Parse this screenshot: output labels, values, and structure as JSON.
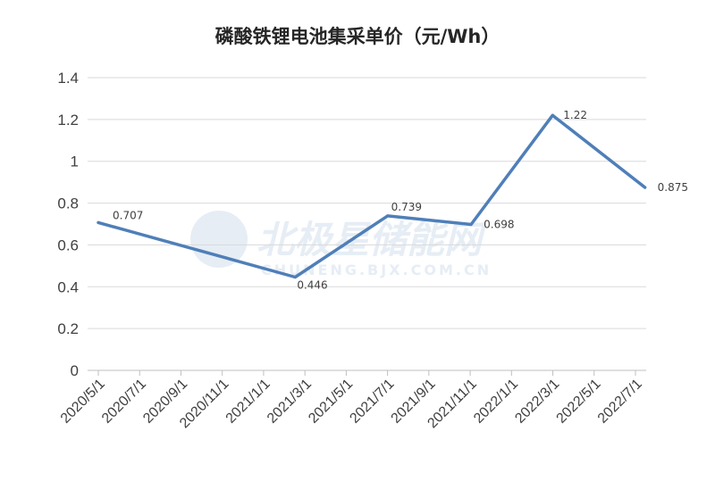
{
  "chart_data": {
    "type": "line",
    "title": "磷酸铁锂电池集采单价（元/Wh）",
    "xlabel": "",
    "ylabel": "",
    "ylim": [
      0,
      1.4
    ],
    "yticks": [
      "0",
      "0.2",
      "0.4",
      "0.6",
      "0.8",
      "1",
      "1.2",
      "1.4"
    ],
    "grid": true,
    "categories": [
      "2020/5/1",
      "2020/7/1",
      "2020/9/1",
      "2020/11/1",
      "2021/1/1",
      "2021/3/1",
      "2021/5/1",
      "2021/7/1",
      "2021/9/1",
      "2021/11/1",
      "2022/1/1",
      "2022/3/1",
      "2022/5/1",
      "2022/7/1"
    ],
    "series": [
      {
        "color": "#4f7fb8",
        "points": [
          {
            "x": "2020/5/1",
            "y": 0.707,
            "label": "0.707"
          },
          {
            "x": "2021/2/15",
            "y": 0.446,
            "label": "0.446"
          },
          {
            "x": "2021/7/1",
            "y": 0.739,
            "label": "0.739"
          },
          {
            "x": "2021/11/1",
            "y": 0.698,
            "label": "0.698"
          },
          {
            "x": "2022/3/1",
            "y": 1.22,
            "label": "1.22"
          },
          {
            "x": "2022/7/15",
            "y": 0.875,
            "label": "0.875"
          }
        ]
      }
    ]
  },
  "watermark": {
    "text": "北极星储能网",
    "subtext": "CHUNENG.BJX.COM.CN"
  }
}
